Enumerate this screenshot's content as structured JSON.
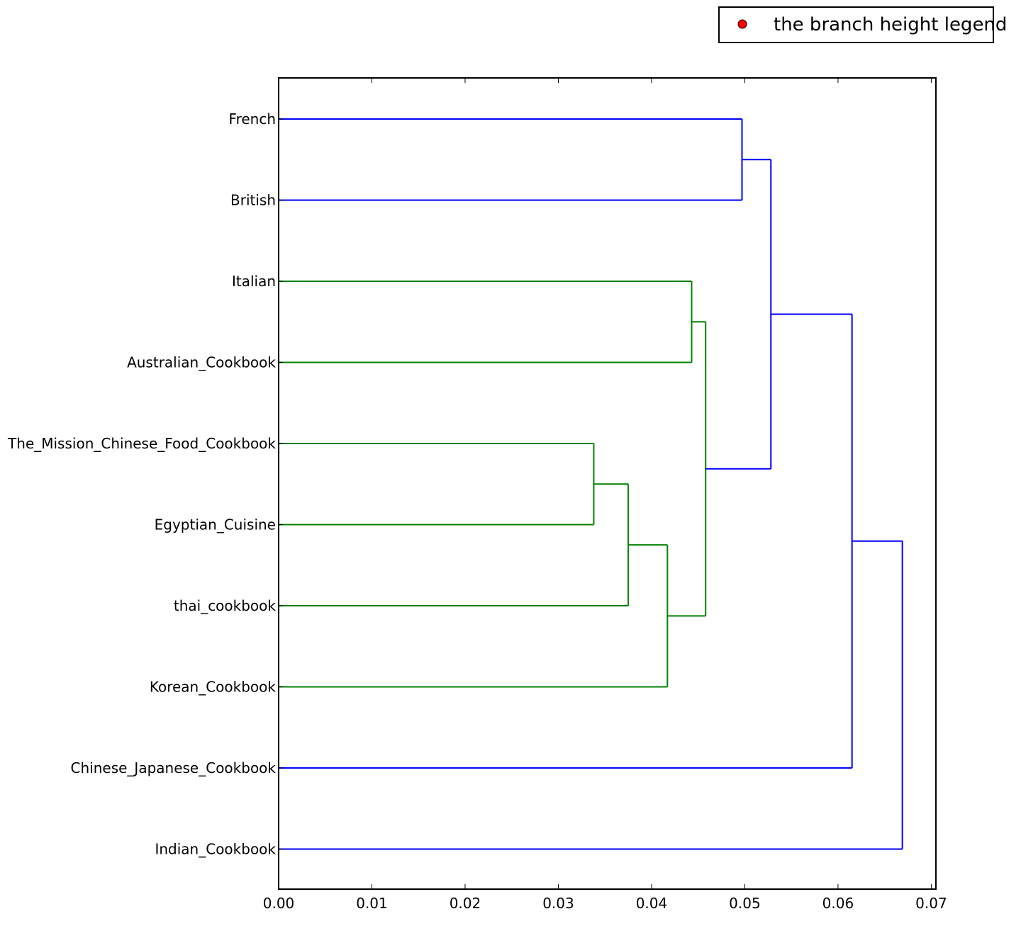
{
  "chart_data": {
    "type": "dendrogram",
    "orientation": "horizontal",
    "title": "",
    "xlabel": "",
    "ylabel": "",
    "xlim": [
      0,
      0.0705
    ],
    "x_ticks": [
      "0.00",
      "0.01",
      "0.02",
      "0.03",
      "0.04",
      "0.05",
      "0.06",
      "0.07"
    ],
    "grid": false,
    "legend": {
      "position": "top-right",
      "entries": [
        {
          "label": "the branch height legend",
          "marker": "circle",
          "color": "#ff0000"
        }
      ]
    },
    "colors": {
      "cluster_above": "#0000ff",
      "cluster_green": "#008000",
      "axis": "#000000",
      "legend_marker": "#ff0000"
    },
    "leaves": [
      "French",
      "British",
      "Italian",
      "Australian_Cookbook",
      "The_Mission_Chinese_Food_Cookbook",
      "Egyptian_Cuisine",
      "thai_cookbook",
      "Korean_Cookbook",
      "Chinese_Japanese_Cookbook",
      "Indian_Cookbook"
    ],
    "merges": [
      {
        "id": "m_french_british",
        "children": [
          "French",
          "British"
        ],
        "height": 0.0497,
        "color": "blue"
      },
      {
        "id": "m_italian_australian",
        "children": [
          "Italian",
          "Australian_Cookbook"
        ],
        "height": 0.0443,
        "color": "green"
      },
      {
        "id": "m_mission_egyptian",
        "children": [
          "The_Mission_Chinese_Food_Cookbook",
          "Egyptian_Cuisine"
        ],
        "height": 0.0338,
        "color": "green"
      },
      {
        "id": "m_plus_thai",
        "children": [
          "m_mission_egyptian",
          "thai_cookbook"
        ],
        "height": 0.0375,
        "color": "green"
      },
      {
        "id": "m_plus_korean",
        "children": [
          "m_plus_thai",
          "Korean_Cookbook"
        ],
        "height": 0.0417,
        "color": "green"
      },
      {
        "id": "m_green_cluster",
        "children": [
          "m_italian_australian",
          "m_plus_korean"
        ],
        "height": 0.0458,
        "color": "green"
      },
      {
        "id": "m_upper",
        "children": [
          "m_french_british",
          "m_green_cluster"
        ],
        "height": 0.0528,
        "color": "blue"
      },
      {
        "id": "m_plus_chinese_japanese",
        "children": [
          "m_upper",
          "Chinese_Japanese_Cookbook"
        ],
        "height": 0.0615,
        "color": "blue"
      },
      {
        "id": "m_root",
        "children": [
          "m_plus_chinese_japanese",
          "Indian_Cookbook"
        ],
        "height": 0.0669,
        "color": "blue"
      }
    ]
  }
}
